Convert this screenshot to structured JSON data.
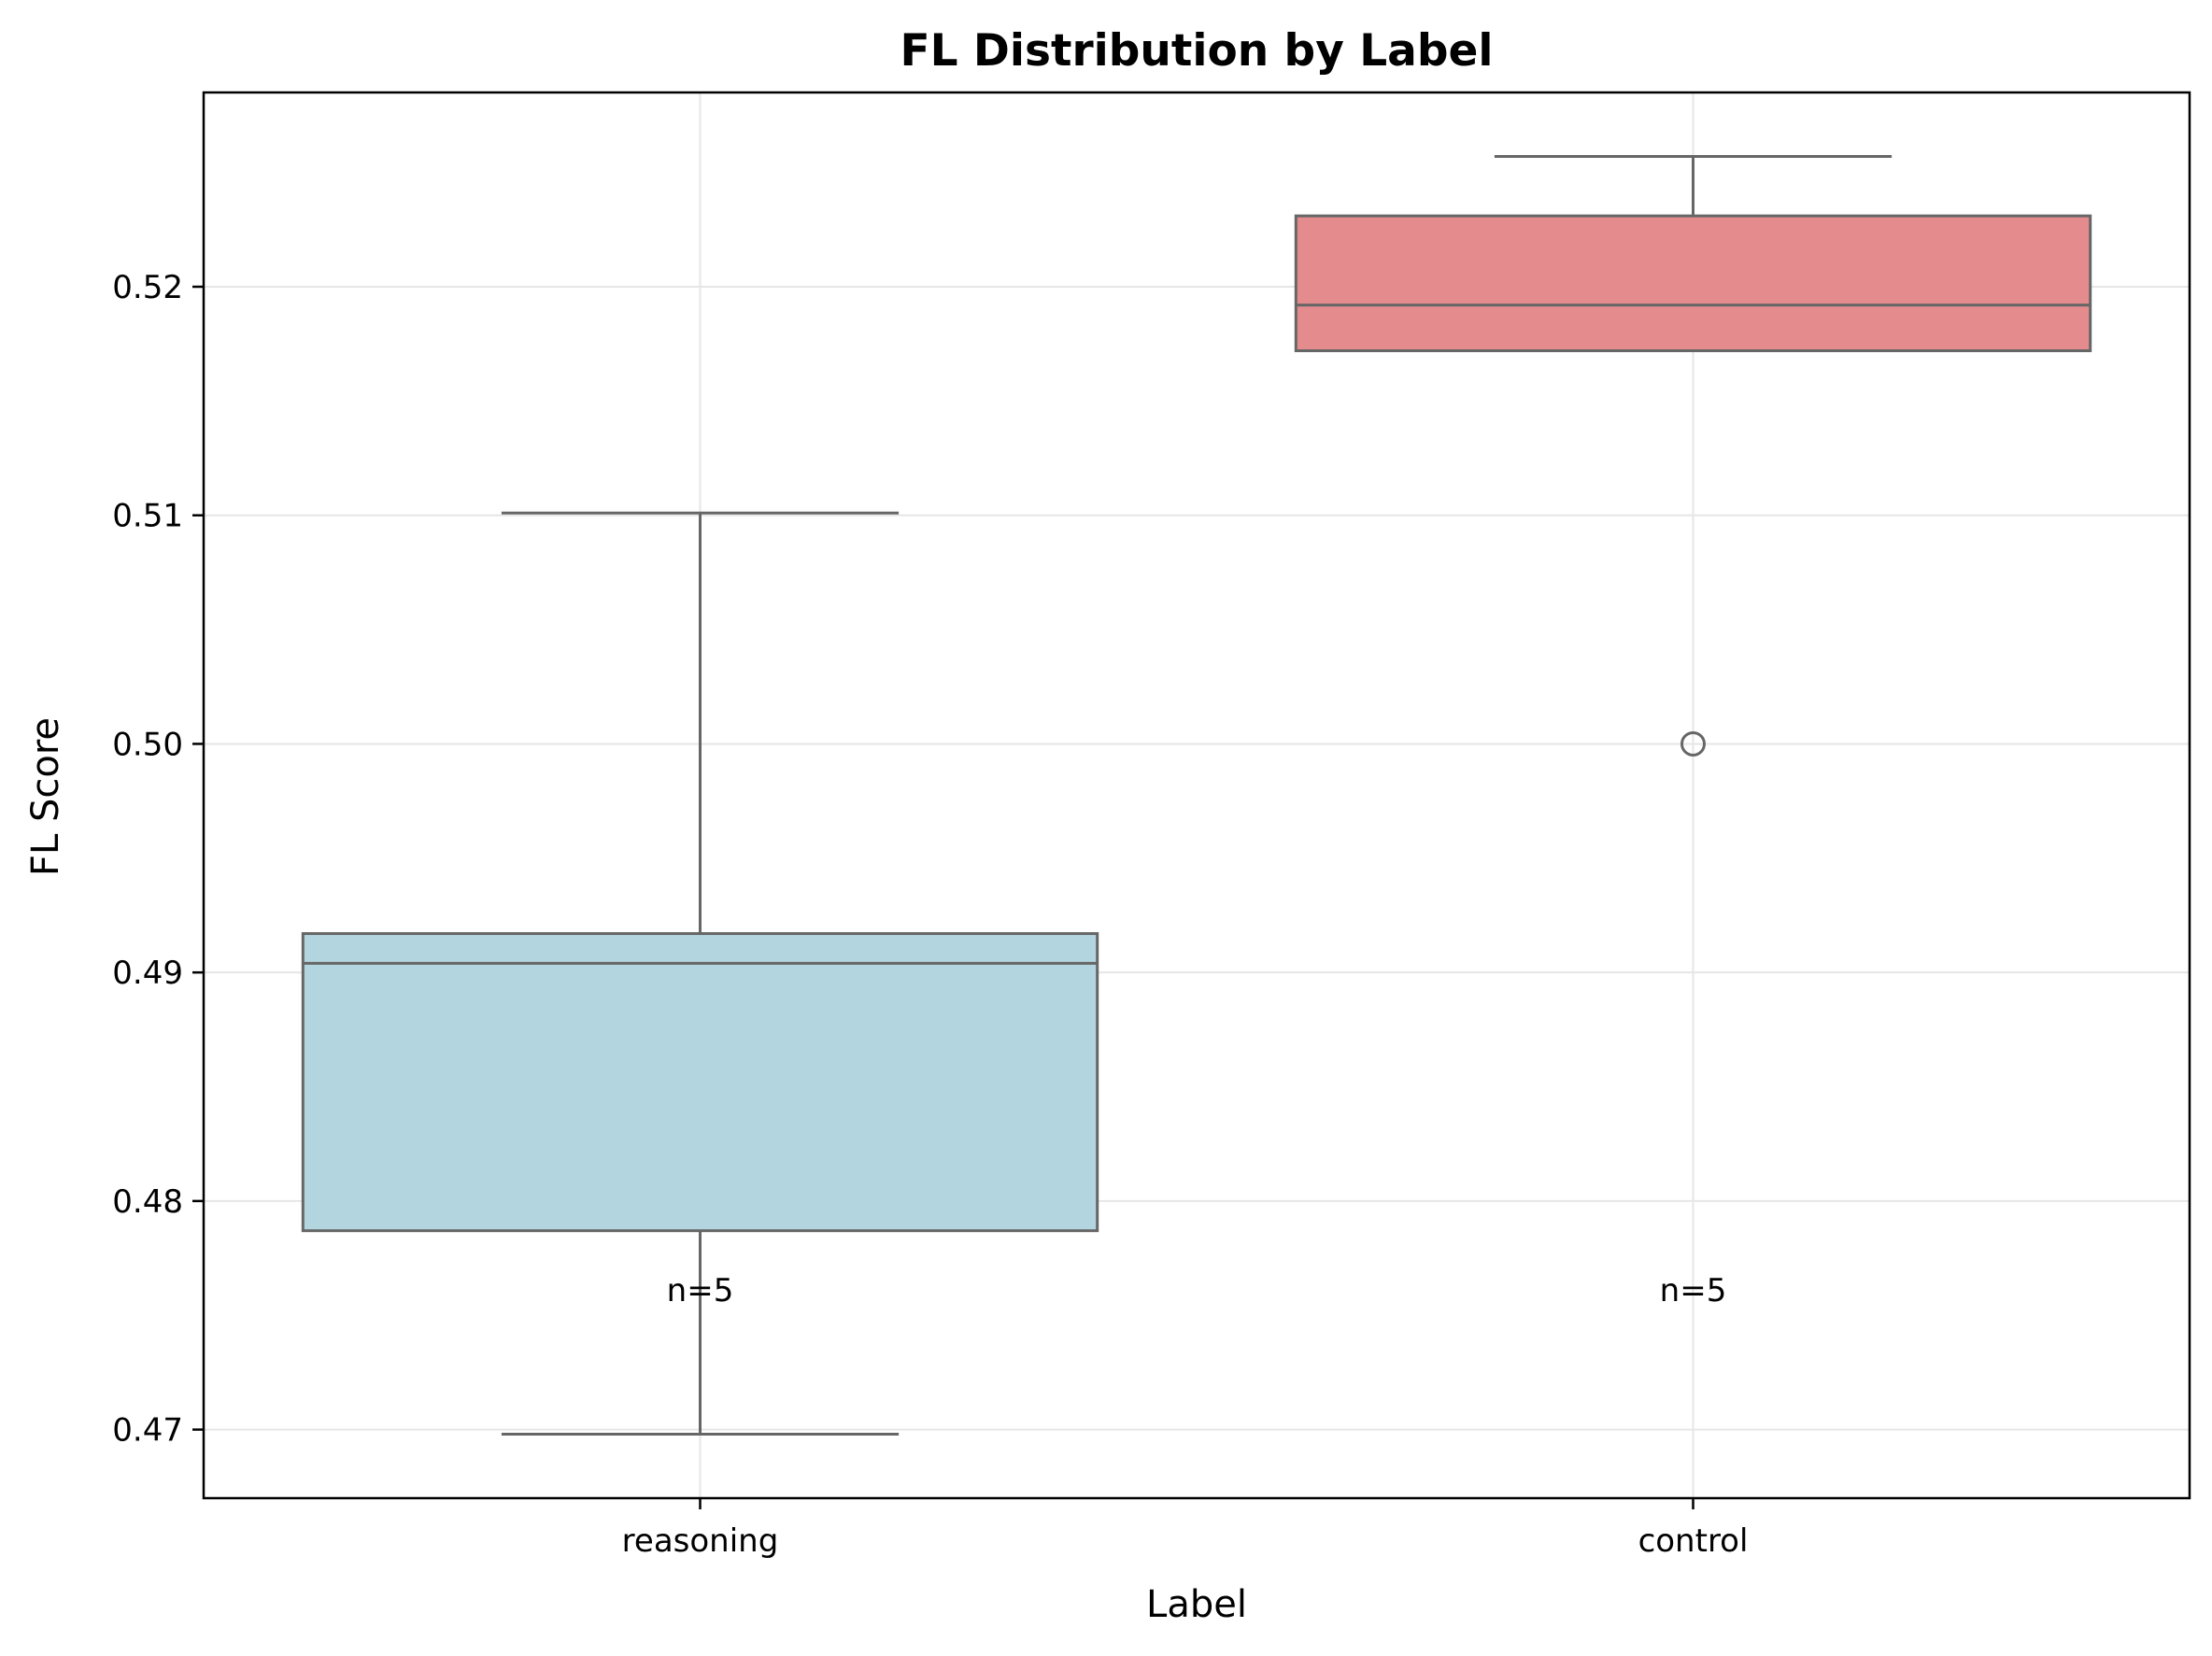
{
  "chart_data": {
    "type": "box",
    "title": "FL Distribution by Label",
    "xlabel": "Label",
    "ylabel": "FL Score",
    "ylim": [
      0.467,
      0.5285
    ],
    "yticks": [
      0.47,
      0.48,
      0.49,
      0.5,
      0.51,
      0.52
    ],
    "ytick_labels": [
      "0.47",
      "0.48",
      "0.49",
      "0.50",
      "0.51",
      "0.52"
    ],
    "categories": [
      "reasoning",
      "control"
    ],
    "grid": true,
    "boxes": [
      {
        "category": "reasoning",
        "whisker_low": 0.4698,
        "q1": 0.4787,
        "median": 0.4904,
        "q3": 0.4917,
        "whisker_high": 0.5101,
        "outliers": [],
        "n_label": "n=5",
        "color": "#b3d5e0"
      },
      {
        "category": "control",
        "whisker_low": 0.5172,
        "q1": 0.5172,
        "median": 0.5192,
        "q3": 0.5231,
        "whisker_high": 0.5257,
        "outliers": [
          0.5
        ],
        "n_label": "n=5",
        "color": "#e38b8d"
      }
    ],
    "colors": {
      "box_edge": "#666666",
      "grid": "#e6e6e6",
      "axes": "#000000"
    }
  }
}
